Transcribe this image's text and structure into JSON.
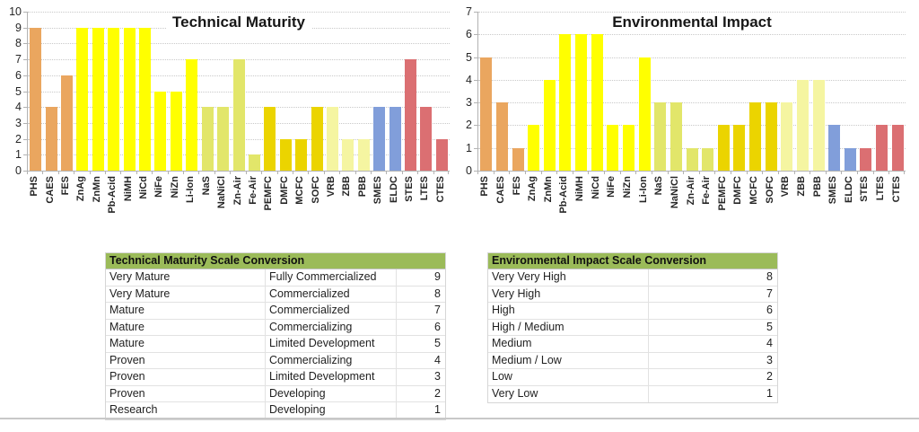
{
  "palette": {
    "orange": "#EAA65F",
    "yellow": "#FFFF00",
    "lime": "#E2E66A",
    "gold": "#EBD400",
    "pale_yellow": "#F5F5A1",
    "blue": "#819EDA",
    "red": "#DB6F72"
  },
  "styles": {
    "table_header_bg": "#9BBB59",
    "axis_color": "#B3B3B3",
    "gridline_color": "#C9C9C9",
    "divider_color": "#C8C8C8"
  },
  "chart_data": [
    {
      "type": "bar",
      "title": "Technical Maturity",
      "categories": [
        "PHS",
        "CAES",
        "FES",
        "ZnAg",
        "ZnMn",
        "Pb-Acid",
        "NiMH",
        "NiCd",
        "NiFe",
        "NiZn",
        "Li-Ion",
        "NaS",
        "NaNiCl",
        "Zn-Air",
        "Fe-Air",
        "PEMFC",
        "DMFC",
        "MCFC",
        "SOFC",
        "VRB",
        "ZBB",
        "PBB",
        "SMES",
        "ELDC",
        "STES",
        "LTES",
        "CTES"
      ],
      "values": [
        9,
        4,
        6,
        9,
        9,
        9,
        9,
        9,
        5,
        5,
        7,
        4,
        4,
        7,
        1,
        4,
        2,
        2,
        4,
        4,
        2,
        2,
        4,
        4,
        7,
        4,
        2
      ],
      "color_groups": [
        "orange",
        "orange",
        "orange",
        "yellow",
        "yellow",
        "yellow",
        "yellow",
        "yellow",
        "yellow",
        "yellow",
        "yellow",
        "lime",
        "lime",
        "lime",
        "lime",
        "gold",
        "gold",
        "gold",
        "gold",
        "pale_yellow",
        "pale_yellow",
        "pale_yellow",
        "blue",
        "blue",
        "red",
        "red",
        "red"
      ],
      "xlabel": "",
      "ylabel": "",
      "ylim": [
        0,
        10
      ],
      "yticks": [
        0,
        1,
        2,
        3,
        4,
        5,
        6,
        7,
        8,
        9,
        10
      ],
      "grid": "horizontal-dotted",
      "legend": "none"
    },
    {
      "type": "bar",
      "title": "Environmental Impact",
      "categories": [
        "PHS",
        "CAES",
        "FES",
        "ZnAg",
        "ZnMn",
        "Pb-Acid",
        "NiMH",
        "NiCd",
        "NiFe",
        "NiZn",
        "Li-Ion",
        "NaS",
        "NaNiCl",
        "Zn-Air",
        "Fe-Air",
        "PEMFC",
        "DMFC",
        "MCFC",
        "SOFC",
        "VRB",
        "ZBB",
        "PBB",
        "SMES",
        "ELDC",
        "STES",
        "LTES",
        "CTES"
      ],
      "values": [
        5,
        3,
        1,
        2,
        4,
        6,
        6,
        6,
        2,
        2,
        5,
        3,
        3,
        1,
        1,
        2,
        2,
        3,
        3,
        3,
        4,
        4,
        2,
        1,
        1,
        2,
        2
      ],
      "color_groups": [
        "orange",
        "orange",
        "orange",
        "yellow",
        "yellow",
        "yellow",
        "yellow",
        "yellow",
        "yellow",
        "yellow",
        "yellow",
        "lime",
        "lime",
        "lime",
        "lime",
        "gold",
        "gold",
        "gold",
        "gold",
        "pale_yellow",
        "pale_yellow",
        "pale_yellow",
        "blue",
        "blue",
        "red",
        "red",
        "red"
      ],
      "xlabel": "",
      "ylabel": "",
      "ylim": [
        0,
        7
      ],
      "yticks": [
        0,
        1,
        2,
        3,
        4,
        5,
        6,
        7
      ],
      "grid": "horizontal-dotted",
      "legend": "none"
    }
  ],
  "tables": [
    {
      "title": "Technical Maturity Scale Conversion",
      "rows": [
        [
          "Very Mature",
          "Fully Commercialized",
          "9"
        ],
        [
          "Very Mature",
          "Commercialized",
          "8"
        ],
        [
          "Mature",
          "Commercialized",
          "7"
        ],
        [
          "Mature",
          "Commercializing",
          "6"
        ],
        [
          "Mature",
          "Limited Development",
          "5"
        ],
        [
          "Proven",
          "Commercializing",
          "4"
        ],
        [
          "Proven",
          "Limited Development",
          "3"
        ],
        [
          "Proven",
          "Developing",
          "2"
        ],
        [
          "Research",
          "Developing",
          "1"
        ]
      ]
    },
    {
      "title": "Environmental Impact Scale Conversion",
      "rows": [
        [
          "Very Very High",
          "8"
        ],
        [
          "Very High",
          "7"
        ],
        [
          "High",
          "6"
        ],
        [
          "High / Medium",
          "5"
        ],
        [
          "Medium",
          "4"
        ],
        [
          "Medium / Low",
          "3"
        ],
        [
          "Low",
          "2"
        ],
        [
          "Very Low",
          "1"
        ]
      ]
    }
  ]
}
